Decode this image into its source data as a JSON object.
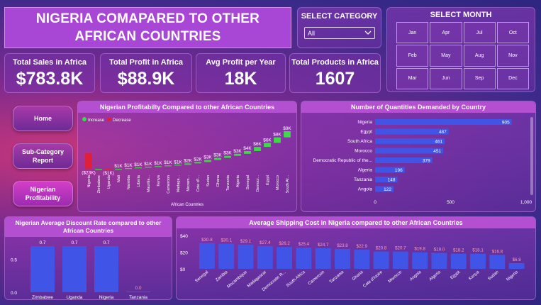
{
  "title": "NIGERIA COMAPARED TO OTHER AFRICAN COUNTRIES",
  "category_slicer": {
    "label": "SELECT CATEGORY",
    "value": "All"
  },
  "month_slicer": {
    "label": "SELECT MONTH",
    "months": [
      "Jan",
      "Apr",
      "Jul",
      "Oct",
      "Feb",
      "May",
      "Aug",
      "Nov",
      "Mar",
      "Jun",
      "Sep",
      "Dec"
    ]
  },
  "kpis": [
    {
      "label": "Total Sales in Africa",
      "value": "$783.8K"
    },
    {
      "label": "Total Profit in Africa",
      "value": "$88.9K"
    },
    {
      "label": "Avg Profit per Year",
      "value": "18K"
    },
    {
      "label": "Total Products in Africa",
      "value": "1607"
    }
  ],
  "nav": {
    "home": "Home",
    "subcategory": "Sub-Category Report",
    "nigerian": "Nigerian Profitability"
  },
  "colors": {
    "increase": "#3fd84a",
    "decrease": "#e0203a",
    "bar": "#4055e8",
    "bar_label": "#ff9db0"
  },
  "chart_data": [
    {
      "type": "bar",
      "subtype": "waterfall",
      "title": "Nigerian Profitabilty Compared to other African Countries",
      "xlabel": "African Countries",
      "legend": [
        "Increase",
        "Decrease"
      ],
      "legend_position": "top-left",
      "categories": [
        "Nigeria",
        "Zimbabwe",
        "Uganda",
        "Mali",
        "Namibia",
        "Liberia",
        "Mauritania",
        "Kenya",
        "Cameroon",
        "Madagascar",
        "Mozambique",
        "Cote d'Ivoire",
        "Sudan",
        "Ghana",
        "Tanzania",
        "Algeria",
        "Senegal",
        "Democratic Republic of the Congo",
        "Egypt",
        "Morocco",
        "South Africa"
      ],
      "category_labels": [
        "Nigeria",
        "Zimbabwe",
        "Uganda",
        "Mali",
        "Namibia",
        "Liberia",
        "Mauritia...",
        "Kenya",
        "Cameroon",
        "Madaga...",
        "Mozam...",
        "Cote d'I...",
        "Sudan",
        "Ghana",
        "Tanzania",
        "Algeria",
        "Senegal",
        "Democr...",
        "Egypt",
        "Morocco",
        "South Af..."
      ],
      "values": [
        -23,
        0.3,
        -1,
        1,
        1,
        1,
        1,
        1,
        1,
        1,
        2,
        2,
        3,
        3,
        3,
        3,
        4,
        6,
        6,
        8,
        9
      ],
      "value_labels": [
        "($23K)",
        "",
        "($1K)",
        "$1K",
        "$1K",
        "$1K",
        "$1K",
        "$1K",
        "$1K",
        "$1K",
        "$2K",
        "$2K",
        "$3K",
        "$3K",
        "$3K",
        "$3K",
        "$4K",
        "$6K",
        "$6K",
        "$8K",
        "$9K"
      ]
    },
    {
      "type": "bar",
      "orientation": "horizontal",
      "title": "Number of Quantities Demanded by Country",
      "categories": [
        "Nigeria",
        "Egypt",
        "South Africa",
        "Morocco",
        "Democratic Republic of the...",
        "Algeria",
        "Tanzania",
        "Angola"
      ],
      "values": [
        905,
        487,
        461,
        451,
        379,
        196,
        148,
        122
      ],
      "xlim": [
        0,
        1000
      ],
      "xticks": [
        "0",
        "500",
        "1,000"
      ]
    },
    {
      "type": "bar",
      "title": "Nigerian Average Discount Rate compared to other African Countries",
      "categories": [
        "Zimbabwe",
        "Uganda",
        "Nigeria",
        "Tanzania"
      ],
      "values": [
        0.7,
        0.7,
        0.7,
        0.0
      ],
      "value_labels": [
        "0.7",
        "0.7",
        "0.7",
        "0.0"
      ],
      "ylim": [
        0,
        0.7
      ],
      "yticks": [
        "0.5",
        "0.0"
      ]
    },
    {
      "type": "bar",
      "title": "Average Shipping Cost in Nigeria compared to other African Countries",
      "categories": [
        "Senegal",
        "Zambia",
        "Mozambique",
        "Madagascar",
        "Democratic R...",
        "South Africa",
        "Cameroon",
        "Tanzania",
        "Ghana",
        "Cote d'Ivoire",
        "Morocco",
        "Angola",
        "Algeria",
        "Egypt",
        "Kenya",
        "Sudan",
        "Nigeria"
      ],
      "values": [
        30.8,
        30.1,
        29.1,
        27.4,
        26.2,
        25.4,
        24.7,
        23.8,
        22.9,
        20.8,
        20.7,
        19.8,
        19.0,
        18.2,
        18.1,
        16.8,
        6.8
      ],
      "value_labels": [
        "$30.8",
        "$30.1",
        "$29.1",
        "$27.4",
        "$26.2",
        "$25.4",
        "$24.7",
        "$23.8",
        "$22.9",
        "$20.8",
        "$20.7",
        "$19.8",
        "$19.0",
        "$18.2",
        "$18.1",
        "$16.8",
        "$6.8"
      ],
      "ylim": [
        0,
        40
      ],
      "yticks": [
        "$40",
        "$20",
        "$0"
      ]
    }
  ]
}
